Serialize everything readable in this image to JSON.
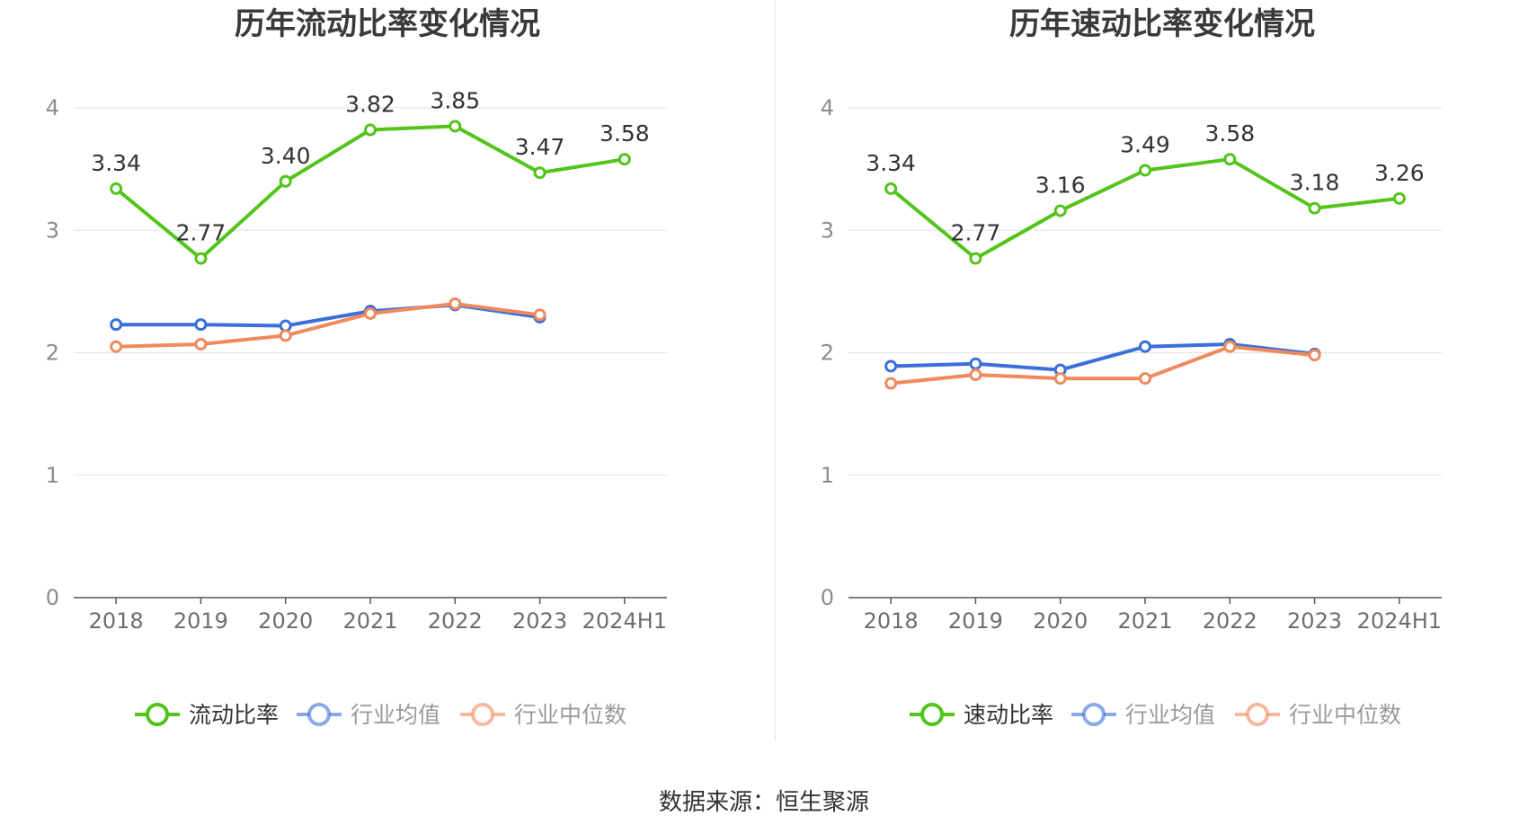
{
  "footer": {
    "source": "数据来源：恒生聚源"
  },
  "chart_data": [
    {
      "type": "line",
      "title": "历年流动比率变化情况",
      "categories": [
        "2018",
        "2019",
        "2020",
        "2021",
        "2022",
        "2023",
        "2024H1"
      ],
      "ylim": [
        0,
        4
      ],
      "yticks": [
        0,
        1,
        2,
        3,
        4
      ],
      "grid": true,
      "legend_position": "bottom",
      "series": [
        {
          "name": "流动比率",
          "color": "#52c41a",
          "labels": true,
          "values": [
            3.34,
            2.77,
            3.4,
            3.82,
            3.85,
            3.47,
            3.58
          ],
          "value_labels": [
            "3.34",
            "2.77",
            "3.40",
            "3.82",
            "3.85",
            "3.47",
            "3.58"
          ]
        },
        {
          "name": "行业均值",
          "color": "#3a6fdb",
          "labels": false,
          "values": [
            2.23,
            2.23,
            2.22,
            2.34,
            2.39,
            2.29,
            null
          ]
        },
        {
          "name": "行业中位数",
          "color": "#f08a5d",
          "labels": false,
          "values": [
            2.05,
            2.07,
            2.14,
            2.32,
            2.4,
            2.31,
            null
          ]
        }
      ]
    },
    {
      "type": "line",
      "title": "历年速动比率变化情况",
      "categories": [
        "2018",
        "2019",
        "2020",
        "2021",
        "2022",
        "2023",
        "2024H1"
      ],
      "ylim": [
        0,
        4
      ],
      "yticks": [
        0,
        1,
        2,
        3,
        4
      ],
      "grid": true,
      "legend_position": "bottom",
      "series": [
        {
          "name": "速动比率",
          "color": "#52c41a",
          "labels": true,
          "values": [
            3.34,
            2.77,
            3.16,
            3.49,
            3.58,
            3.18,
            3.26
          ],
          "value_labels": [
            "3.34",
            "2.77",
            "3.16",
            "3.49",
            "3.58",
            "3.18",
            "3.26"
          ]
        },
        {
          "name": "行业均值",
          "color": "#3a6fdb",
          "labels": false,
          "values": [
            1.89,
            1.91,
            1.86,
            2.05,
            2.07,
            1.99,
            null
          ]
        },
        {
          "name": "行业中位数",
          "color": "#f08a5d",
          "labels": false,
          "values": [
            1.75,
            1.82,
            1.79,
            1.79,
            2.05,
            1.98,
            null
          ]
        }
      ]
    }
  ]
}
